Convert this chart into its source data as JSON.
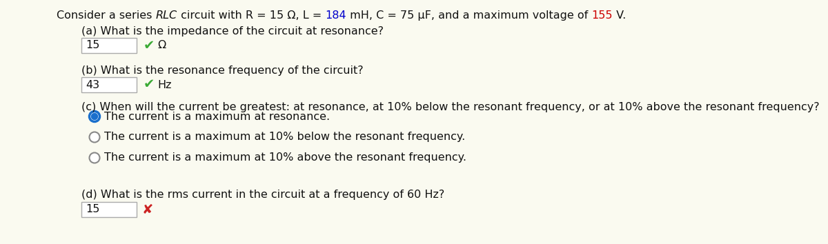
{
  "bg_color": "#fafaf0",
  "left_bar_color": "#d4c870",
  "title_color_normal": "#111111",
  "title_color_highlight_184": "#0000cc",
  "title_color_highlight_155": "#cc0000",
  "qa_label": "(a) What is the impedance of the circuit at resonance?",
  "qa_answer": "15",
  "qa_unit": "Ω",
  "qb_label": "(b) What is the resonance frequency of the circuit?",
  "qb_answer": "43",
  "qb_unit": "Hz",
  "qc_label": "(c) When will the current be greatest: at resonance, at 10% below the resonant frequency, or at 10% above the resonant frequency?",
  "qc_options": [
    "The current is a maximum at resonance.",
    "The current is a maximum at 10% below the resonant frequency.",
    "The current is a maximum at 10% above the resonant frequency."
  ],
  "qc_selected": 0,
  "qd_label": "(d) What is the rms current in the circuit at a frequency of 60 Hz?",
  "qd_answer": "15",
  "check_color": "#3aaa35",
  "cross_color": "#cc2222",
  "radio_fill_color": "#1a6fcc",
  "radio_empty_color": "#888888",
  "text_color": "#111111",
  "font_size": 11.5,
  "title_font_size": 11.5
}
